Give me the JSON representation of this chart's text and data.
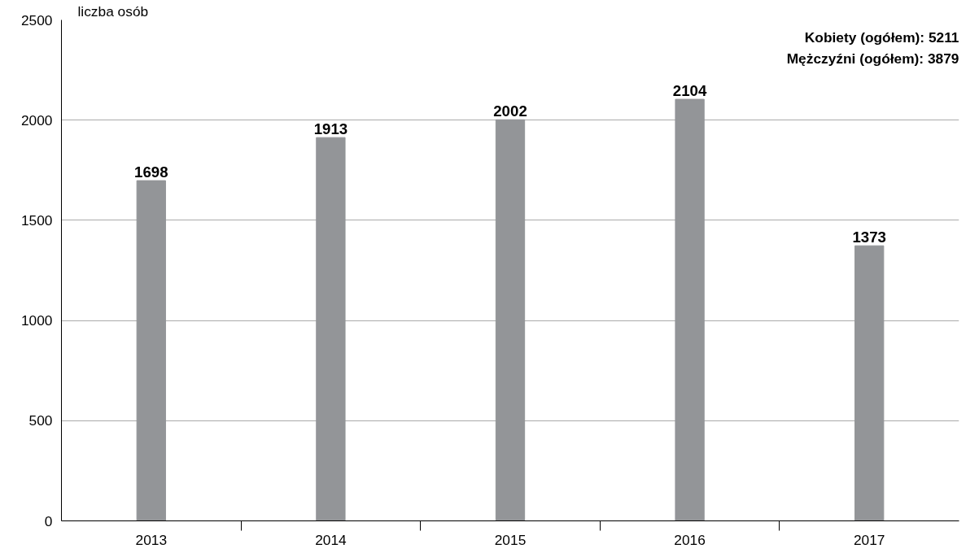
{
  "chart_data": {
    "type": "bar",
    "ylabel": "liczba osób",
    "categories": [
      "2013",
      "2014",
      "2015",
      "2016",
      "2017"
    ],
    "values": [
      1698,
      1913,
      2002,
      2104,
      1373
    ],
    "color": "#939598",
    "ylim": [
      0,
      2500
    ],
    "yticks": [
      0,
      500,
      1000,
      1500,
      2000,
      2500
    ],
    "grid": "y",
    "data_labels": true,
    "annotations": [
      "Kobiety (ogółem): 5211",
      "Mężczyźni (ogółem): 3879"
    ]
  }
}
